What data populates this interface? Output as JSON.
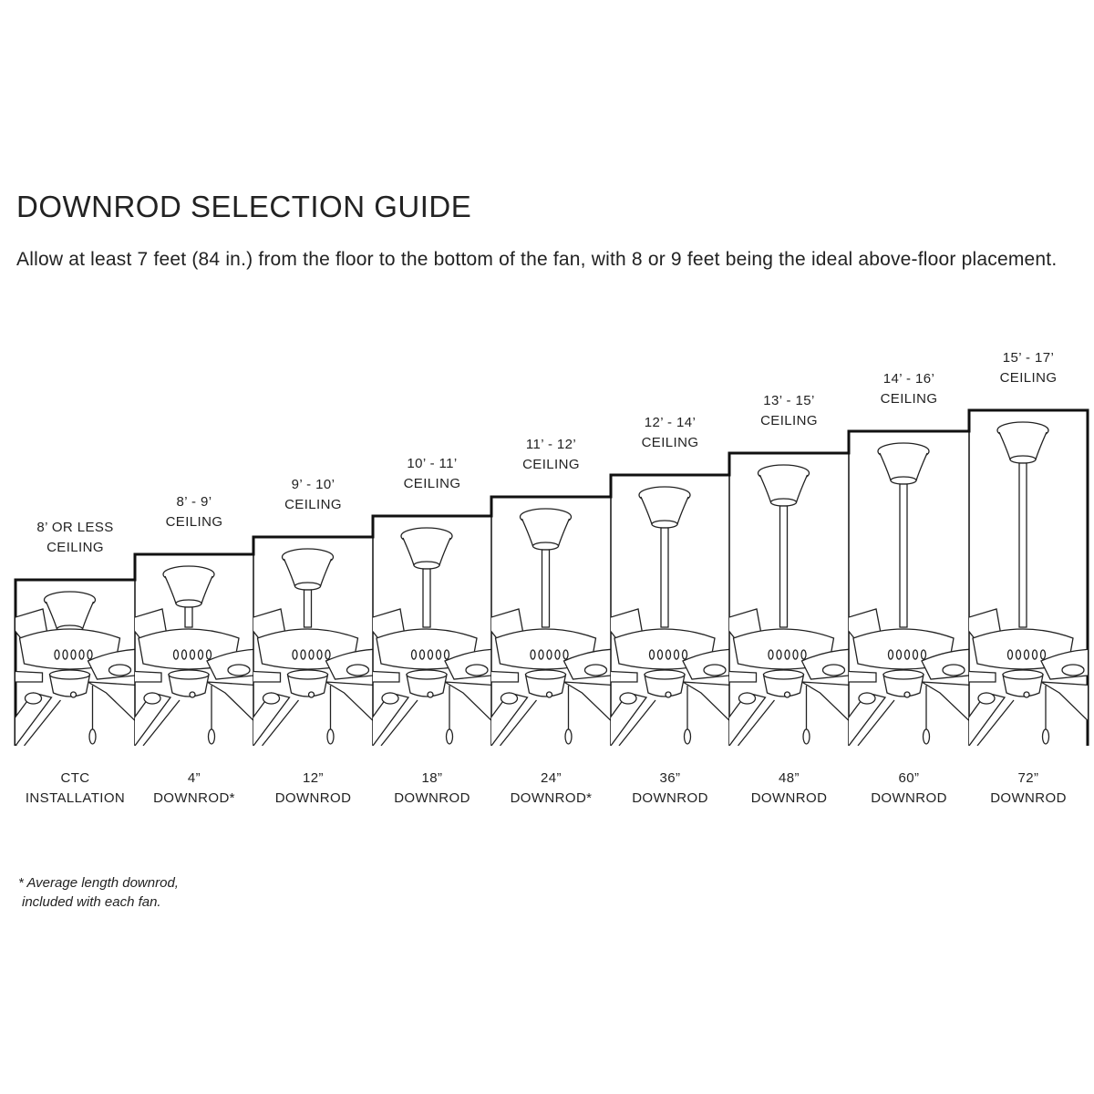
{
  "title": "DOWNROD SELECTION GUIDE",
  "intro": "Allow at least 7 feet (84 in.) from the floor to the bottom of the fan, with 8 or 9 feet being the ideal above-floor placement.",
  "options": [
    {
      "ceiling_line1": "8’ OR LESS",
      "ceiling_line2": "CEILING",
      "mount_line1": "CTC",
      "mount_line2": "INSTALLATION",
      "downrod_in": 0
    },
    {
      "ceiling_line1": "8’ - 9’",
      "ceiling_line2": "CEILING",
      "mount_line1": "4”",
      "mount_line2": "DOWNROD*",
      "downrod_in": 4
    },
    {
      "ceiling_line1": "9’ - 10’",
      "ceiling_line2": "CEILING",
      "mount_line1": "12”",
      "mount_line2": "DOWNROD",
      "downrod_in": 12
    },
    {
      "ceiling_line1": "10’ - 11’",
      "ceiling_line2": "CEILING",
      "mount_line1": "18”",
      "mount_line2": "DOWNROD",
      "downrod_in": 18
    },
    {
      "ceiling_line1": "11’ - 12’",
      "ceiling_line2": "CEILING",
      "mount_line1": "24”",
      "mount_line2": "DOWNROD*",
      "downrod_in": 24
    },
    {
      "ceiling_line1": "12’ - 14’",
      "ceiling_line2": "CEILING",
      "mount_line1": "36”",
      "mount_line2": "DOWNROD",
      "downrod_in": 36
    },
    {
      "ceiling_line1": "13’ - 15’",
      "ceiling_line2": "CEILING",
      "mount_line1": "48”",
      "mount_line2": "DOWNROD",
      "downrod_in": 48
    },
    {
      "ceiling_line1": "14’ - 16’",
      "ceiling_line2": "CEILING",
      "mount_line1": "60”",
      "mount_line2": "DOWNROD",
      "downrod_in": 60
    },
    {
      "ceiling_line1": "15’ - 17’",
      "ceiling_line2": "CEILING",
      "mount_line1": "72”",
      "mount_line2": "DOWNROD",
      "downrod_in": 72
    }
  ],
  "footnote_line1": "* Average length downrod,",
  "footnote_line2": "included with each fan."
}
